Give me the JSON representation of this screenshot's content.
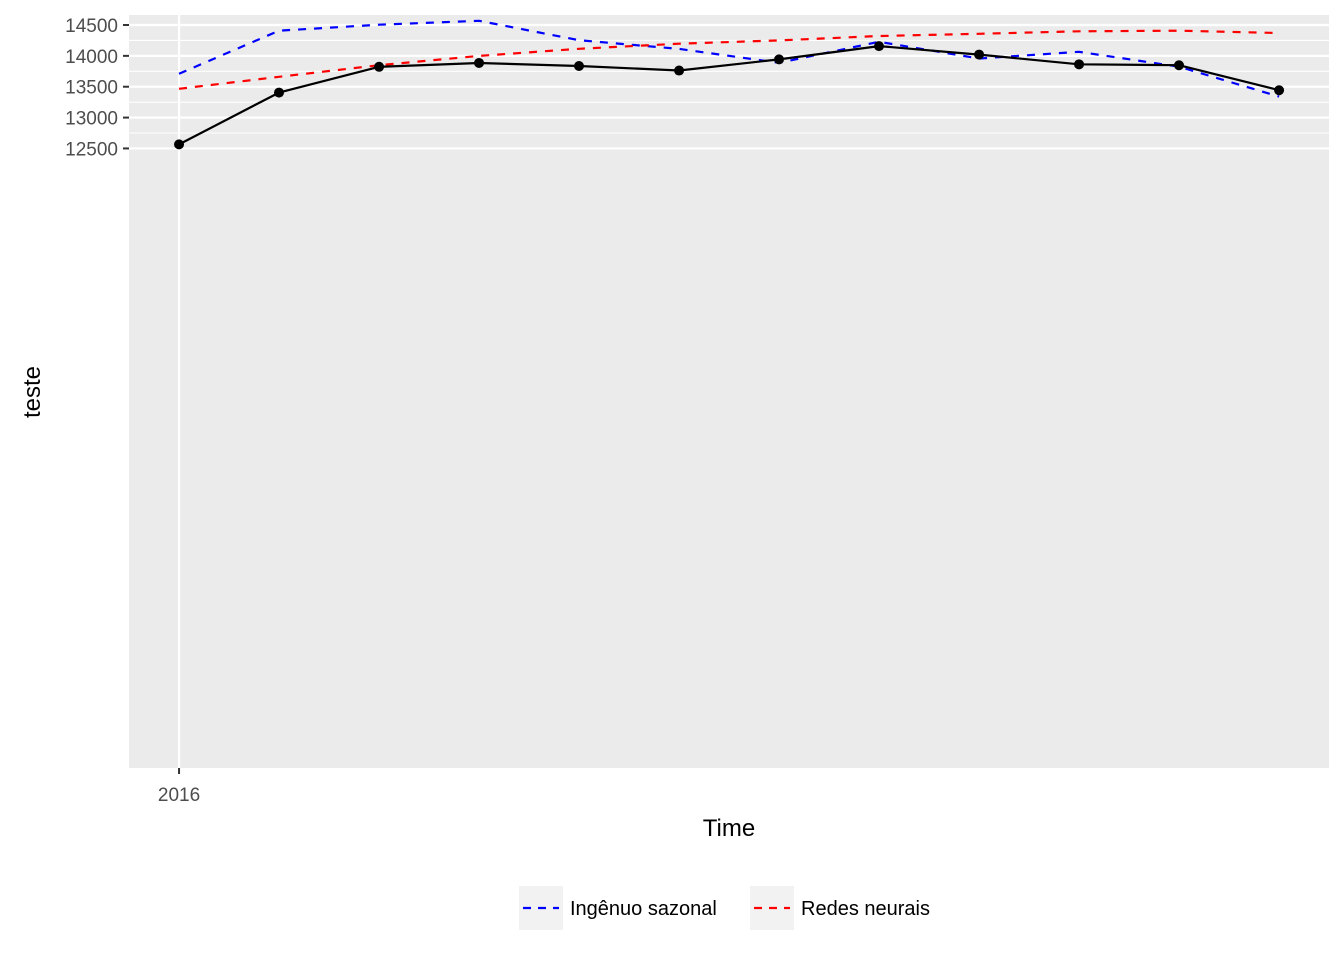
{
  "chart_data": {
    "type": "line",
    "xlabel": "Time",
    "ylabel": "teste",
    "x": [
      2016,
      2016.0833,
      2016.1667,
      2016.25,
      2016.3333,
      2016.4167,
      2016.5,
      2016.5833,
      2016.6667,
      2016.75,
      2016.8333,
      2016.9167
    ],
    "x_ticks": [
      {
        "value": 2016,
        "label": "2016"
      }
    ],
    "xlim": [
      2015.9583,
      2016.9583
    ],
    "ylim": [
      2462,
      14662
    ],
    "y_ticks": [
      12500,
      13000,
      13500,
      14000,
      14500
    ],
    "grid": true,
    "series": [
      {
        "color": "#000000",
        "style": "solid",
        "markers": true,
        "values": [
          12566,
          13405,
          13823,
          13885,
          13836,
          13762,
          13943,
          14158,
          14021,
          13863,
          13848,
          13443
        ]
      },
      {
        "name": "Ingênuo sazonal",
        "color": "#0000FF",
        "style": "dashed",
        "markers": false,
        "values": [
          13710,
          14408,
          14505,
          14568,
          14253,
          14113,
          13888,
          14228,
          13958,
          14065,
          13825,
          13340
        ]
      },
      {
        "name": "Redes neurais",
        "color": "#FF0000",
        "style": "dashed",
        "markers": false,
        "values": [
          13467,
          13660,
          13848,
          14000,
          14115,
          14197,
          14250,
          14322,
          14358,
          14398,
          14408,
          14370
        ]
      }
    ],
    "legend": {
      "position": "bottom",
      "entries": [
        "Ingênuo sazonal",
        "Redes neurais"
      ]
    }
  },
  "colors": {
    "panel_background": "#EBEBEB",
    "grid": "#FFFFFF",
    "tick_text": "#4D4D4D"
  }
}
